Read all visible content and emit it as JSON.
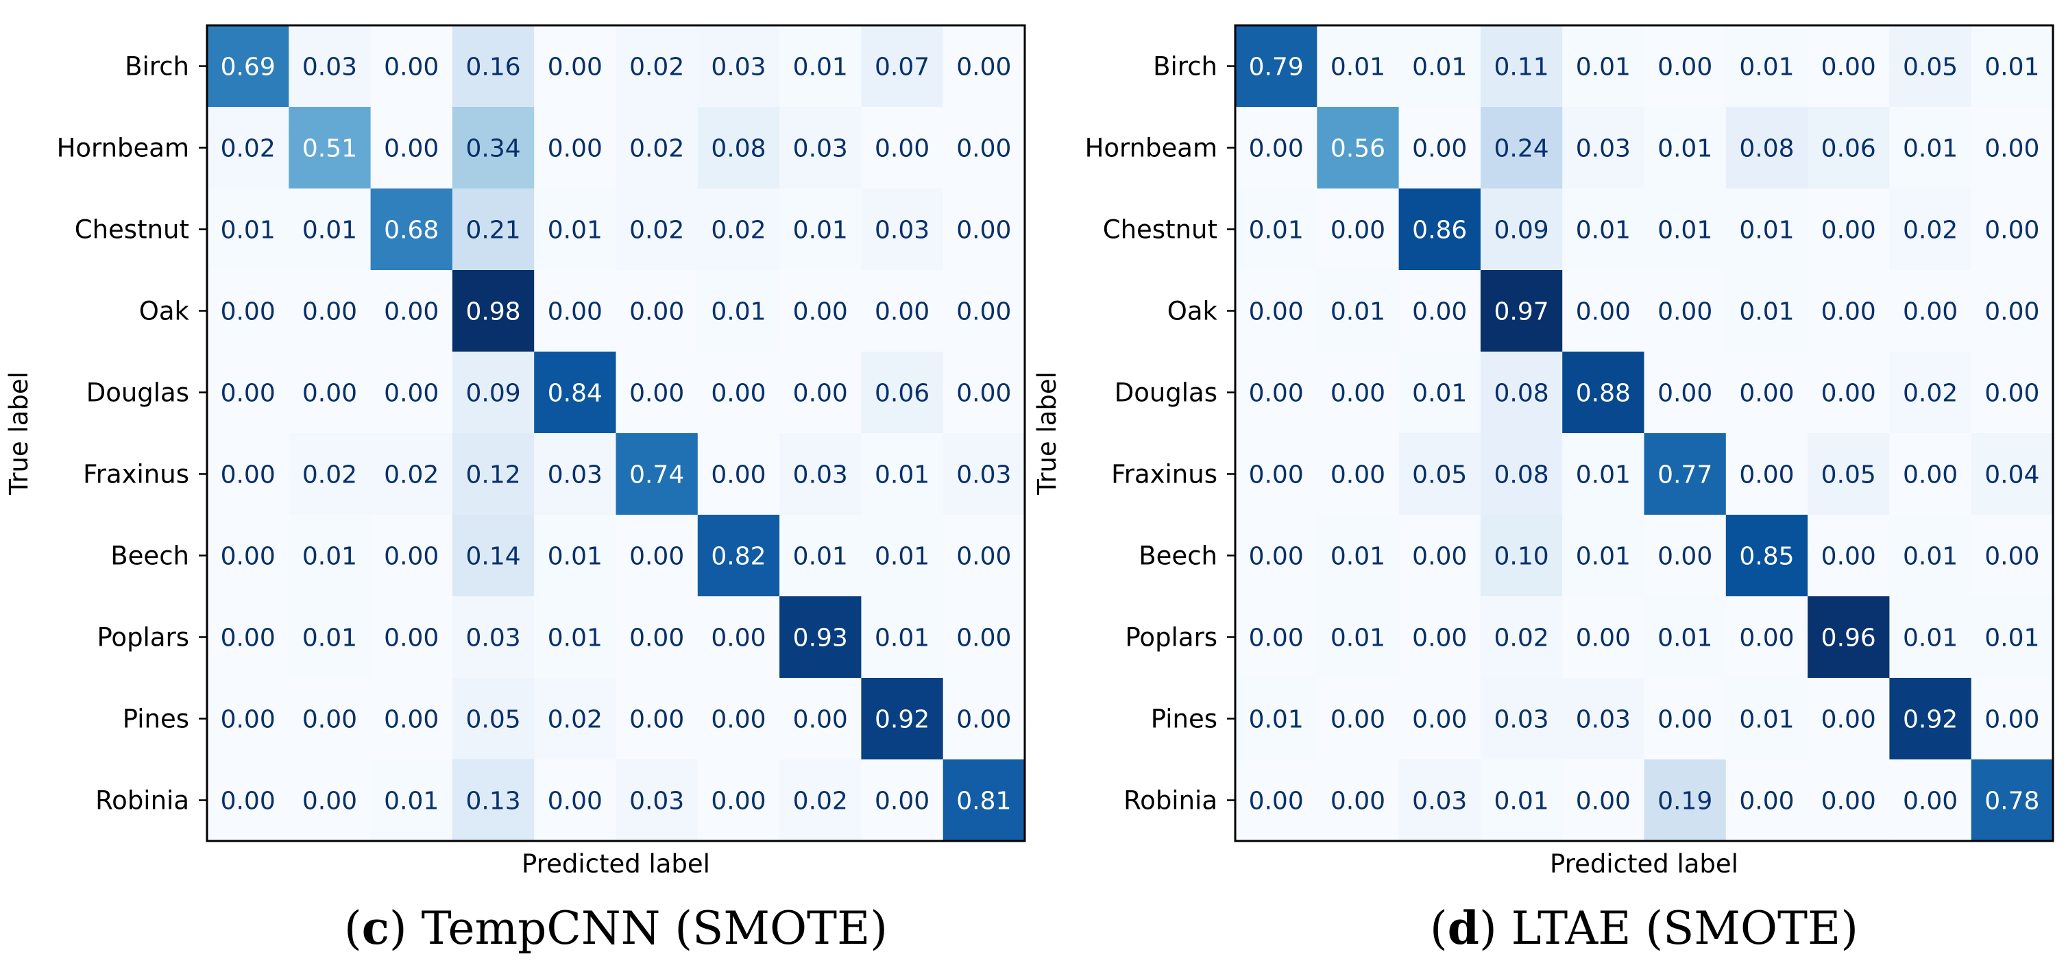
{
  "chart_data": [
    {
      "type": "heatmap",
      "caption_letter": "c",
      "caption_rest": " TempCNN (SMOTE)",
      "xlabel": "Predicted label",
      "ylabel": "True label",
      "row_labels": [
        "Birch",
        "Hornbeam",
        "Chestnut",
        "Oak",
        "Douglas",
        "Fraxinus",
        "Beech",
        "Poplars",
        "Pines",
        "Robinia"
      ],
      "colormap": "Blues",
      "value_range": [
        0,
        1
      ],
      "values": [
        [
          0.69,
          0.03,
          0.0,
          0.16,
          0.0,
          0.02,
          0.03,
          0.01,
          0.07,
          0.0
        ],
        [
          0.02,
          0.51,
          0.0,
          0.34,
          0.0,
          0.02,
          0.08,
          0.03,
          0.0,
          0.0
        ],
        [
          0.01,
          0.01,
          0.68,
          0.21,
          0.01,
          0.02,
          0.02,
          0.01,
          0.03,
          0.0
        ],
        [
          0.0,
          0.0,
          0.0,
          0.98,
          0.0,
          0.0,
          0.01,
          0.0,
          0.0,
          0.0
        ],
        [
          0.0,
          0.0,
          0.0,
          0.09,
          0.84,
          0.0,
          0.0,
          0.0,
          0.06,
          0.0
        ],
        [
          0.0,
          0.02,
          0.02,
          0.12,
          0.03,
          0.74,
          0.0,
          0.03,
          0.01,
          0.03
        ],
        [
          0.0,
          0.01,
          0.0,
          0.14,
          0.01,
          0.0,
          0.82,
          0.01,
          0.01,
          0.0
        ],
        [
          0.0,
          0.01,
          0.0,
          0.03,
          0.01,
          0.0,
          0.0,
          0.93,
          0.01,
          0.0
        ],
        [
          0.0,
          0.0,
          0.0,
          0.05,
          0.02,
          0.0,
          0.0,
          0.0,
          0.92,
          0.0
        ],
        [
          0.0,
          0.0,
          0.01,
          0.13,
          0.0,
          0.03,
          0.0,
          0.02,
          0.0,
          0.81
        ]
      ]
    },
    {
      "type": "heatmap",
      "caption_letter": "d",
      "caption_rest": " LTAE (SMOTE)",
      "xlabel": "Predicted label",
      "ylabel": "True label",
      "row_labels": [
        "Birch",
        "Hornbeam",
        "Chestnut",
        "Oak",
        "Douglas",
        "Fraxinus",
        "Beech",
        "Poplars",
        "Pines",
        "Robinia"
      ],
      "colormap": "Blues",
      "value_range": [
        0,
        1
      ],
      "values": [
        [
          0.79,
          0.01,
          0.01,
          0.11,
          0.01,
          0.0,
          0.01,
          0.0,
          0.05,
          0.01
        ],
        [
          0.0,
          0.56,
          0.0,
          0.24,
          0.03,
          0.01,
          0.08,
          0.06,
          0.01,
          0.0
        ],
        [
          0.01,
          0.0,
          0.86,
          0.09,
          0.01,
          0.01,
          0.01,
          0.0,
          0.02,
          0.0
        ],
        [
          0.0,
          0.01,
          0.0,
          0.97,
          0.0,
          0.0,
          0.01,
          0.0,
          0.0,
          0.0
        ],
        [
          0.0,
          0.0,
          0.01,
          0.08,
          0.88,
          0.0,
          0.0,
          0.0,
          0.02,
          0.0
        ],
        [
          0.0,
          0.0,
          0.05,
          0.08,
          0.01,
          0.77,
          0.0,
          0.05,
          0.0,
          0.04
        ],
        [
          0.0,
          0.01,
          0.0,
          0.1,
          0.01,
          0.0,
          0.85,
          0.0,
          0.01,
          0.0
        ],
        [
          0.0,
          0.01,
          0.0,
          0.02,
          0.0,
          0.01,
          0.0,
          0.96,
          0.01,
          0.01
        ],
        [
          0.01,
          0.0,
          0.0,
          0.03,
          0.03,
          0.0,
          0.01,
          0.0,
          0.92,
          0.0
        ],
        [
          0.0,
          0.0,
          0.03,
          0.01,
          0.0,
          0.19,
          0.0,
          0.0,
          0.0,
          0.78
        ]
      ]
    }
  ]
}
